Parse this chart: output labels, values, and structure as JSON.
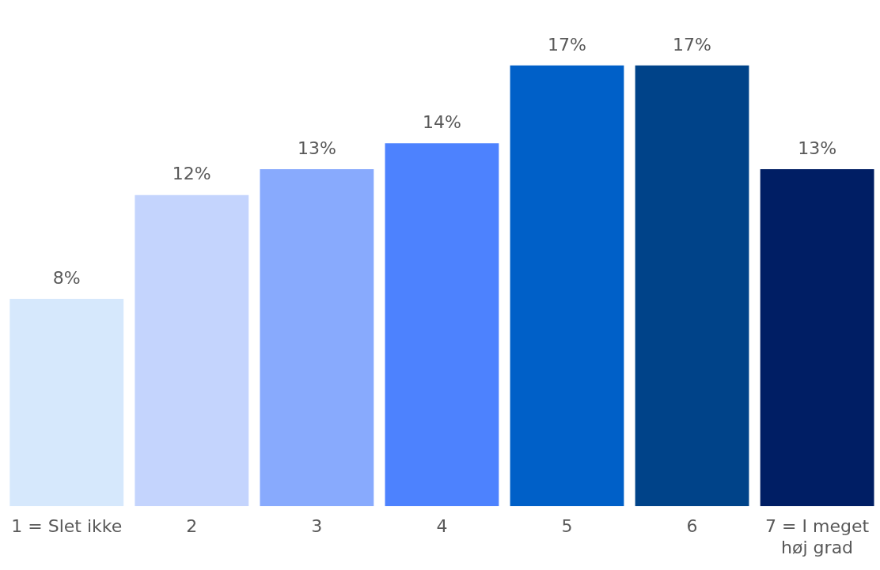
{
  "chart_data": {
    "type": "bar",
    "categories": [
      "1 = Slet ikke",
      "2",
      "3",
      "4",
      "5",
      "6",
      "7 = I meget høj grad"
    ],
    "values": [
      8,
      12,
      13,
      14,
      17,
      17,
      13
    ],
    "value_labels": [
      "8%",
      "12%",
      "13%",
      "14%",
      "17%",
      "17%",
      "13%"
    ],
    "colors": [
      "#d6e8fc",
      "#c4d4fd",
      "#88aafd",
      "#4d82fe",
      "#0060c8",
      "#004389",
      "#001e64"
    ],
    "grid": false,
    "legend": false
  }
}
